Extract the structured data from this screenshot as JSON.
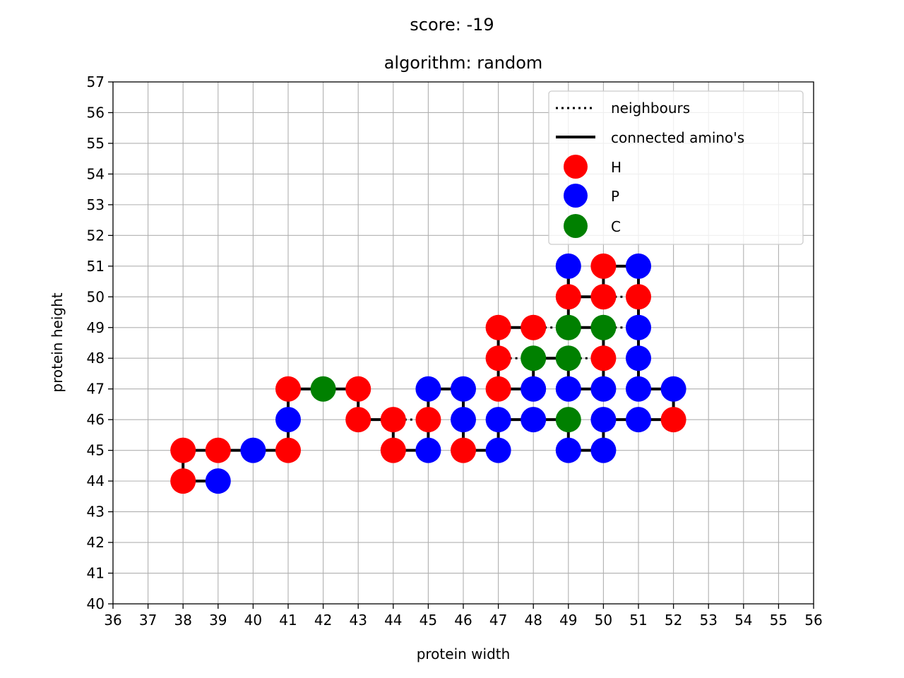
{
  "chart_data": {
    "type": "scatter",
    "suptitle": "score: -19",
    "title": "algorithm: random",
    "xlabel": "protein width",
    "ylabel": "protein height",
    "xlim": [
      36,
      56
    ],
    "ylim": [
      40,
      57
    ],
    "grid": true,
    "legend": {
      "placement": "top-right",
      "entries": [
        {
          "label": "neighbours",
          "kind": "dotted-line",
          "color": "#000000"
        },
        {
          "label": "connected amino's",
          "kind": "solid-line",
          "color": "#000000"
        },
        {
          "label": "H",
          "kind": "marker",
          "color": "#ff0000"
        },
        {
          "label": "P",
          "kind": "marker",
          "color": "#0000ff"
        },
        {
          "label": "C",
          "kind": "marker",
          "color": "#008000"
        }
      ]
    },
    "colors": {
      "H": "#ff0000",
      "P": "#0000ff",
      "C": "#008000"
    },
    "chain": [
      {
        "x": 39,
        "y": 44,
        "type": "P"
      },
      {
        "x": 38,
        "y": 44,
        "type": "H"
      },
      {
        "x": 38,
        "y": 45,
        "type": "H"
      },
      {
        "x": 39,
        "y": 45,
        "type": "H"
      },
      {
        "x": 40,
        "y": 45,
        "type": "P"
      },
      {
        "x": 41,
        "y": 45,
        "type": "H"
      },
      {
        "x": 41,
        "y": 46,
        "type": "P"
      },
      {
        "x": 41,
        "y": 47,
        "type": "H"
      },
      {
        "x": 42,
        "y": 47,
        "type": "C"
      },
      {
        "x": 43,
        "y": 47,
        "type": "H"
      },
      {
        "x": 43,
        "y": 46,
        "type": "H"
      },
      {
        "x": 44,
        "y": 46,
        "type": "H"
      },
      {
        "x": 44,
        "y": 45,
        "type": "H"
      },
      {
        "x": 45,
        "y": 45,
        "type": "P"
      },
      {
        "x": 45,
        "y": 46,
        "type": "H"
      },
      {
        "x": 45,
        "y": 47,
        "type": "P"
      },
      {
        "x": 46,
        "y": 47,
        "type": "P"
      },
      {
        "x": 46,
        "y": 46,
        "type": "P"
      },
      {
        "x": 46,
        "y": 45,
        "type": "H"
      },
      {
        "x": 47,
        "y": 45,
        "type": "P"
      },
      {
        "x": 47,
        "y": 46,
        "type": "P"
      },
      {
        "x": 48,
        "y": 46,
        "type": "P"
      },
      {
        "x": 49,
        "y": 46,
        "type": "C"
      },
      {
        "x": 49,
        "y": 45,
        "type": "P"
      },
      {
        "x": 50,
        "y": 45,
        "type": "P"
      },
      {
        "x": 50,
        "y": 46,
        "type": "P"
      },
      {
        "x": 51,
        "y": 46,
        "type": "P"
      },
      {
        "x": 52,
        "y": 46,
        "type": "H"
      },
      {
        "x": 52,
        "y": 47,
        "type": "P"
      },
      {
        "x": 51,
        "y": 47,
        "type": "P"
      },
      {
        "x": 51,
        "y": 48,
        "type": "P"
      },
      {
        "x": 51,
        "y": 49,
        "type": "P"
      },
      {
        "x": 51,
        "y": 50,
        "type": "H"
      },
      {
        "x": 51,
        "y": 51,
        "type": "P"
      },
      {
        "x": 50,
        "y": 51,
        "type": "H"
      },
      {
        "x": 50,
        "y": 50,
        "type": "H"
      },
      {
        "x": 49,
        "y": 50,
        "type": "H"
      },
      {
        "x": 49,
        "y": 51,
        "type": "P"
      },
      {
        "x": 49,
        "y": 49,
        "type": "C"
      },
      {
        "x": 50,
        "y": 49,
        "type": "C"
      },
      {
        "x": 50,
        "y": 48,
        "type": "H"
      },
      {
        "x": 50,
        "y": 47,
        "type": "P"
      },
      {
        "x": 49,
        "y": 47,
        "type": "P"
      },
      {
        "x": 49,
        "y": 48,
        "type": "C"
      },
      {
        "x": 48,
        "y": 48,
        "type": "C"
      },
      {
        "x": 48,
        "y": 47,
        "type": "P"
      },
      {
        "x": 47,
        "y": 47,
        "type": "H"
      },
      {
        "x": 47,
        "y": 48,
        "type": "H"
      },
      {
        "x": 47,
        "y": 49,
        "type": "H"
      },
      {
        "x": 48,
        "y": 49,
        "type": "H"
      }
    ],
    "neighbours": [
      [
        [
          38,
          45
        ],
        [
          39,
          45
        ]
      ],
      [
        [
          44,
          46
        ],
        [
          45,
          46
        ]
      ],
      [
        [
          47,
          48
        ],
        [
          48,
          48
        ]
      ],
      [
        [
          48,
          49
        ],
        [
          49,
          49
        ]
      ],
      [
        [
          49,
          48
        ],
        [
          50,
          48
        ]
      ],
      [
        [
          49,
          50
        ],
        [
          50,
          50
        ]
      ],
      [
        [
          50,
          50
        ],
        [
          51,
          50
        ]
      ],
      [
        [
          50,
          49
        ],
        [
          51,
          49
        ]
      ]
    ]
  }
}
